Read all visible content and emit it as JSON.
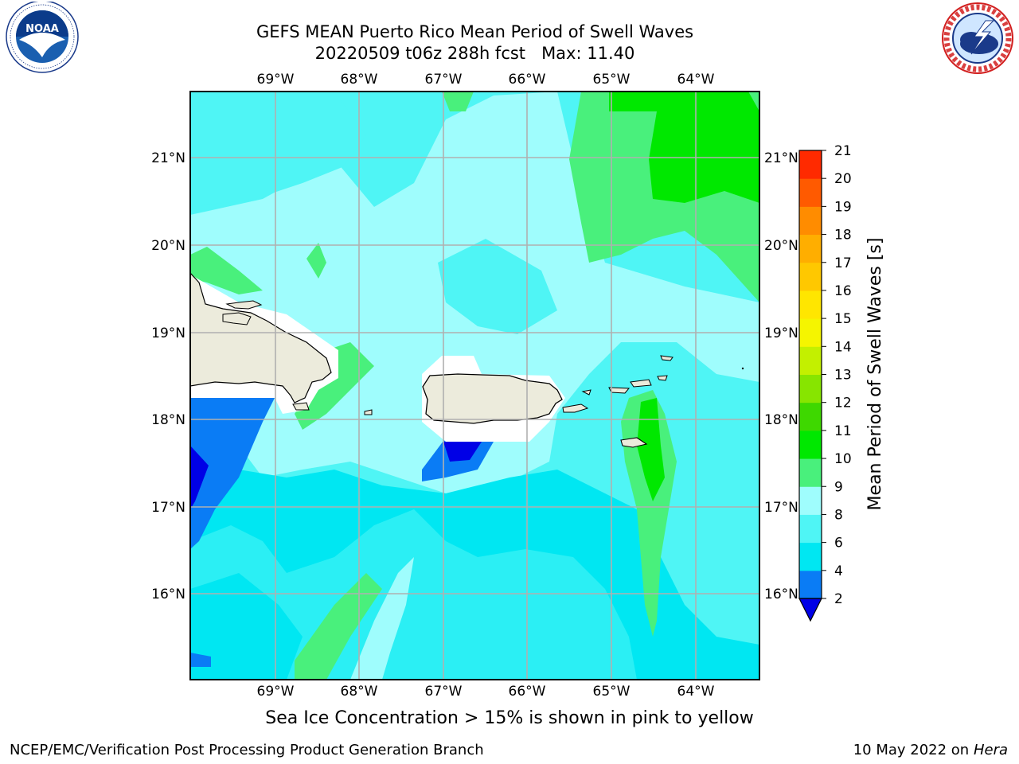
{
  "title": {
    "line1": "GEFS MEAN Puerto Rico Mean Period of Swell Waves",
    "line2": "20220509 t06z 288h fcst   Max: 11.40"
  },
  "logos": {
    "left": "noaa-logo",
    "left_text": "NOAA",
    "left_ring_text": "NATIONAL OCEANIC AND ATMOSPHERIC ADMINISTRATION · U.S. DEPARTMENT OF COMMERCE",
    "right": "nws-logo",
    "right_ring_text": "NATIONAL WEATHER SERVICE"
  },
  "map": {
    "lon_labels": [
      "69°W",
      "68°W",
      "67°W",
      "66°W",
      "65°W",
      "64°W"
    ],
    "lat_labels": [
      "21°N",
      "20°N",
      "19°N",
      "18°N",
      "17°N",
      "16°N"
    ],
    "colors": {
      "c2_4": "#0a7cf5",
      "c4_6": "#00e7f2",
      "c6_8": "#4ff5f5",
      "c8_9": "#9ffdfd",
      "c9_10": "#49f07c",
      "c10_11": "#00e800",
      "land": "#ecebdc",
      "ice_mask": "#ffffff",
      "grid": "#b0b0b0"
    }
  },
  "colorbar": {
    "label": "Mean Period of Swell Waves [s]",
    "ticks": [
      "2",
      "4",
      "6",
      "8",
      "9",
      "10",
      "11",
      "12",
      "13",
      "14",
      "15",
      "16",
      "17",
      "18",
      "19",
      "20",
      "21"
    ],
    "colors": [
      "#0a7cf5",
      "#00e7f2",
      "#4ff5f5",
      "#9ffdfd",
      "#49f07c",
      "#00e800",
      "#3ed800",
      "#87e500",
      "#c3f000",
      "#f5f500",
      "#ffe600",
      "#ffc800",
      "#ffae00",
      "#ff8c00",
      "#ff5a00",
      "#ff2a00"
    ],
    "under_color": "#0000e6"
  },
  "caption": "Sea Ice Concentration > 15% is shown in pink to yellow",
  "footer": {
    "left": "NCEP/EMC/Verification Post Processing Product Generation Branch",
    "date": "10 May 2022 on",
    "host": "Hera"
  }
}
